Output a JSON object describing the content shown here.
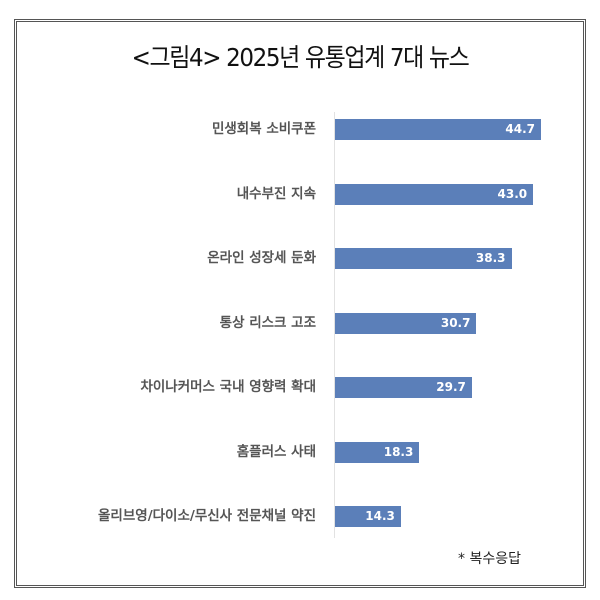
{
  "chart_data": {
    "type": "bar",
    "orientation": "horizontal",
    "title": "<그림4> 2025년 유통업계 7대 뉴스",
    "categories": [
      "민생회복 소비쿠폰",
      "내수부진 지속",
      "온라인 성장세 둔화",
      "통상 리스크 고조",
      "차이나커머스 국내 영향력 확대",
      "홈플러스 사태",
      "올리브영/다이소/무신사 전문채널 약진"
    ],
    "values": [
      44.7,
      43.0,
      38.3,
      30.7,
      29.7,
      18.3,
      14.3
    ],
    "value_labels": [
      "44.7",
      "43.0",
      "38.3",
      "30.7",
      "29.7",
      "18.3",
      "14.3"
    ],
    "bar_color": "#5b7fb9",
    "xlim": [
      0,
      60
    ],
    "grid": false,
    "note": "* 복수응답"
  }
}
